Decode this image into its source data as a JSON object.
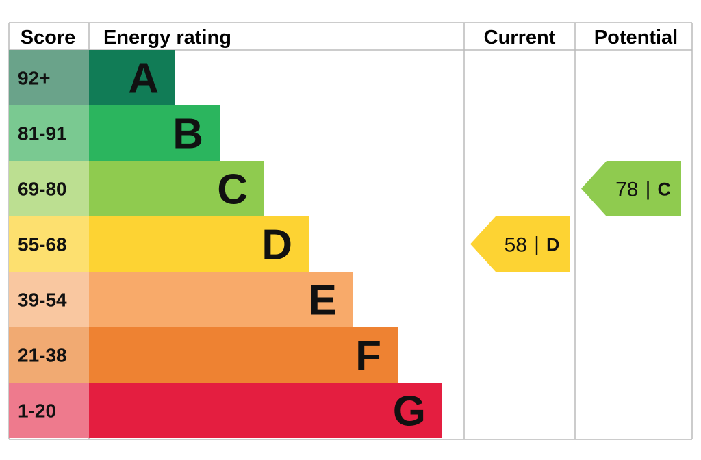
{
  "chart_data": {
    "type": "table",
    "headers": {
      "score": "Score",
      "rating": "Energy rating",
      "current": "Current",
      "potential": "Potential"
    },
    "bands": [
      {
        "score": "92+",
        "letter": "A",
        "color": "#117c56",
        "score_bg": "#6aa38a"
      },
      {
        "score": "81-91",
        "letter": "B",
        "color": "#2bb55e",
        "score_bg": "#7ac991"
      },
      {
        "score": "69-80",
        "letter": "C",
        "color": "#8fcb4f",
        "score_bg": "#bcdf91"
      },
      {
        "score": "55-68",
        "letter": "D",
        "color": "#fdd333",
        "score_bg": "#fde06f"
      },
      {
        "score": "39-54",
        "letter": "E",
        "color": "#f8aa6a",
        "score_bg": "#f9c7a0"
      },
      {
        "score": "21-38",
        "letter": "F",
        "color": "#ee8232",
        "score_bg": "#f1aa72"
      },
      {
        "score": "1-20",
        "letter": "G",
        "color": "#e41e40",
        "score_bg": "#ee7a8d"
      }
    ],
    "current": {
      "value": 58,
      "band": "D",
      "separator": "|",
      "color": "#fdd333"
    },
    "potential": {
      "value": 78,
      "band": "C",
      "separator": "|",
      "color": "#8fcb4f"
    },
    "grid_color": "#bbbbbb"
  }
}
